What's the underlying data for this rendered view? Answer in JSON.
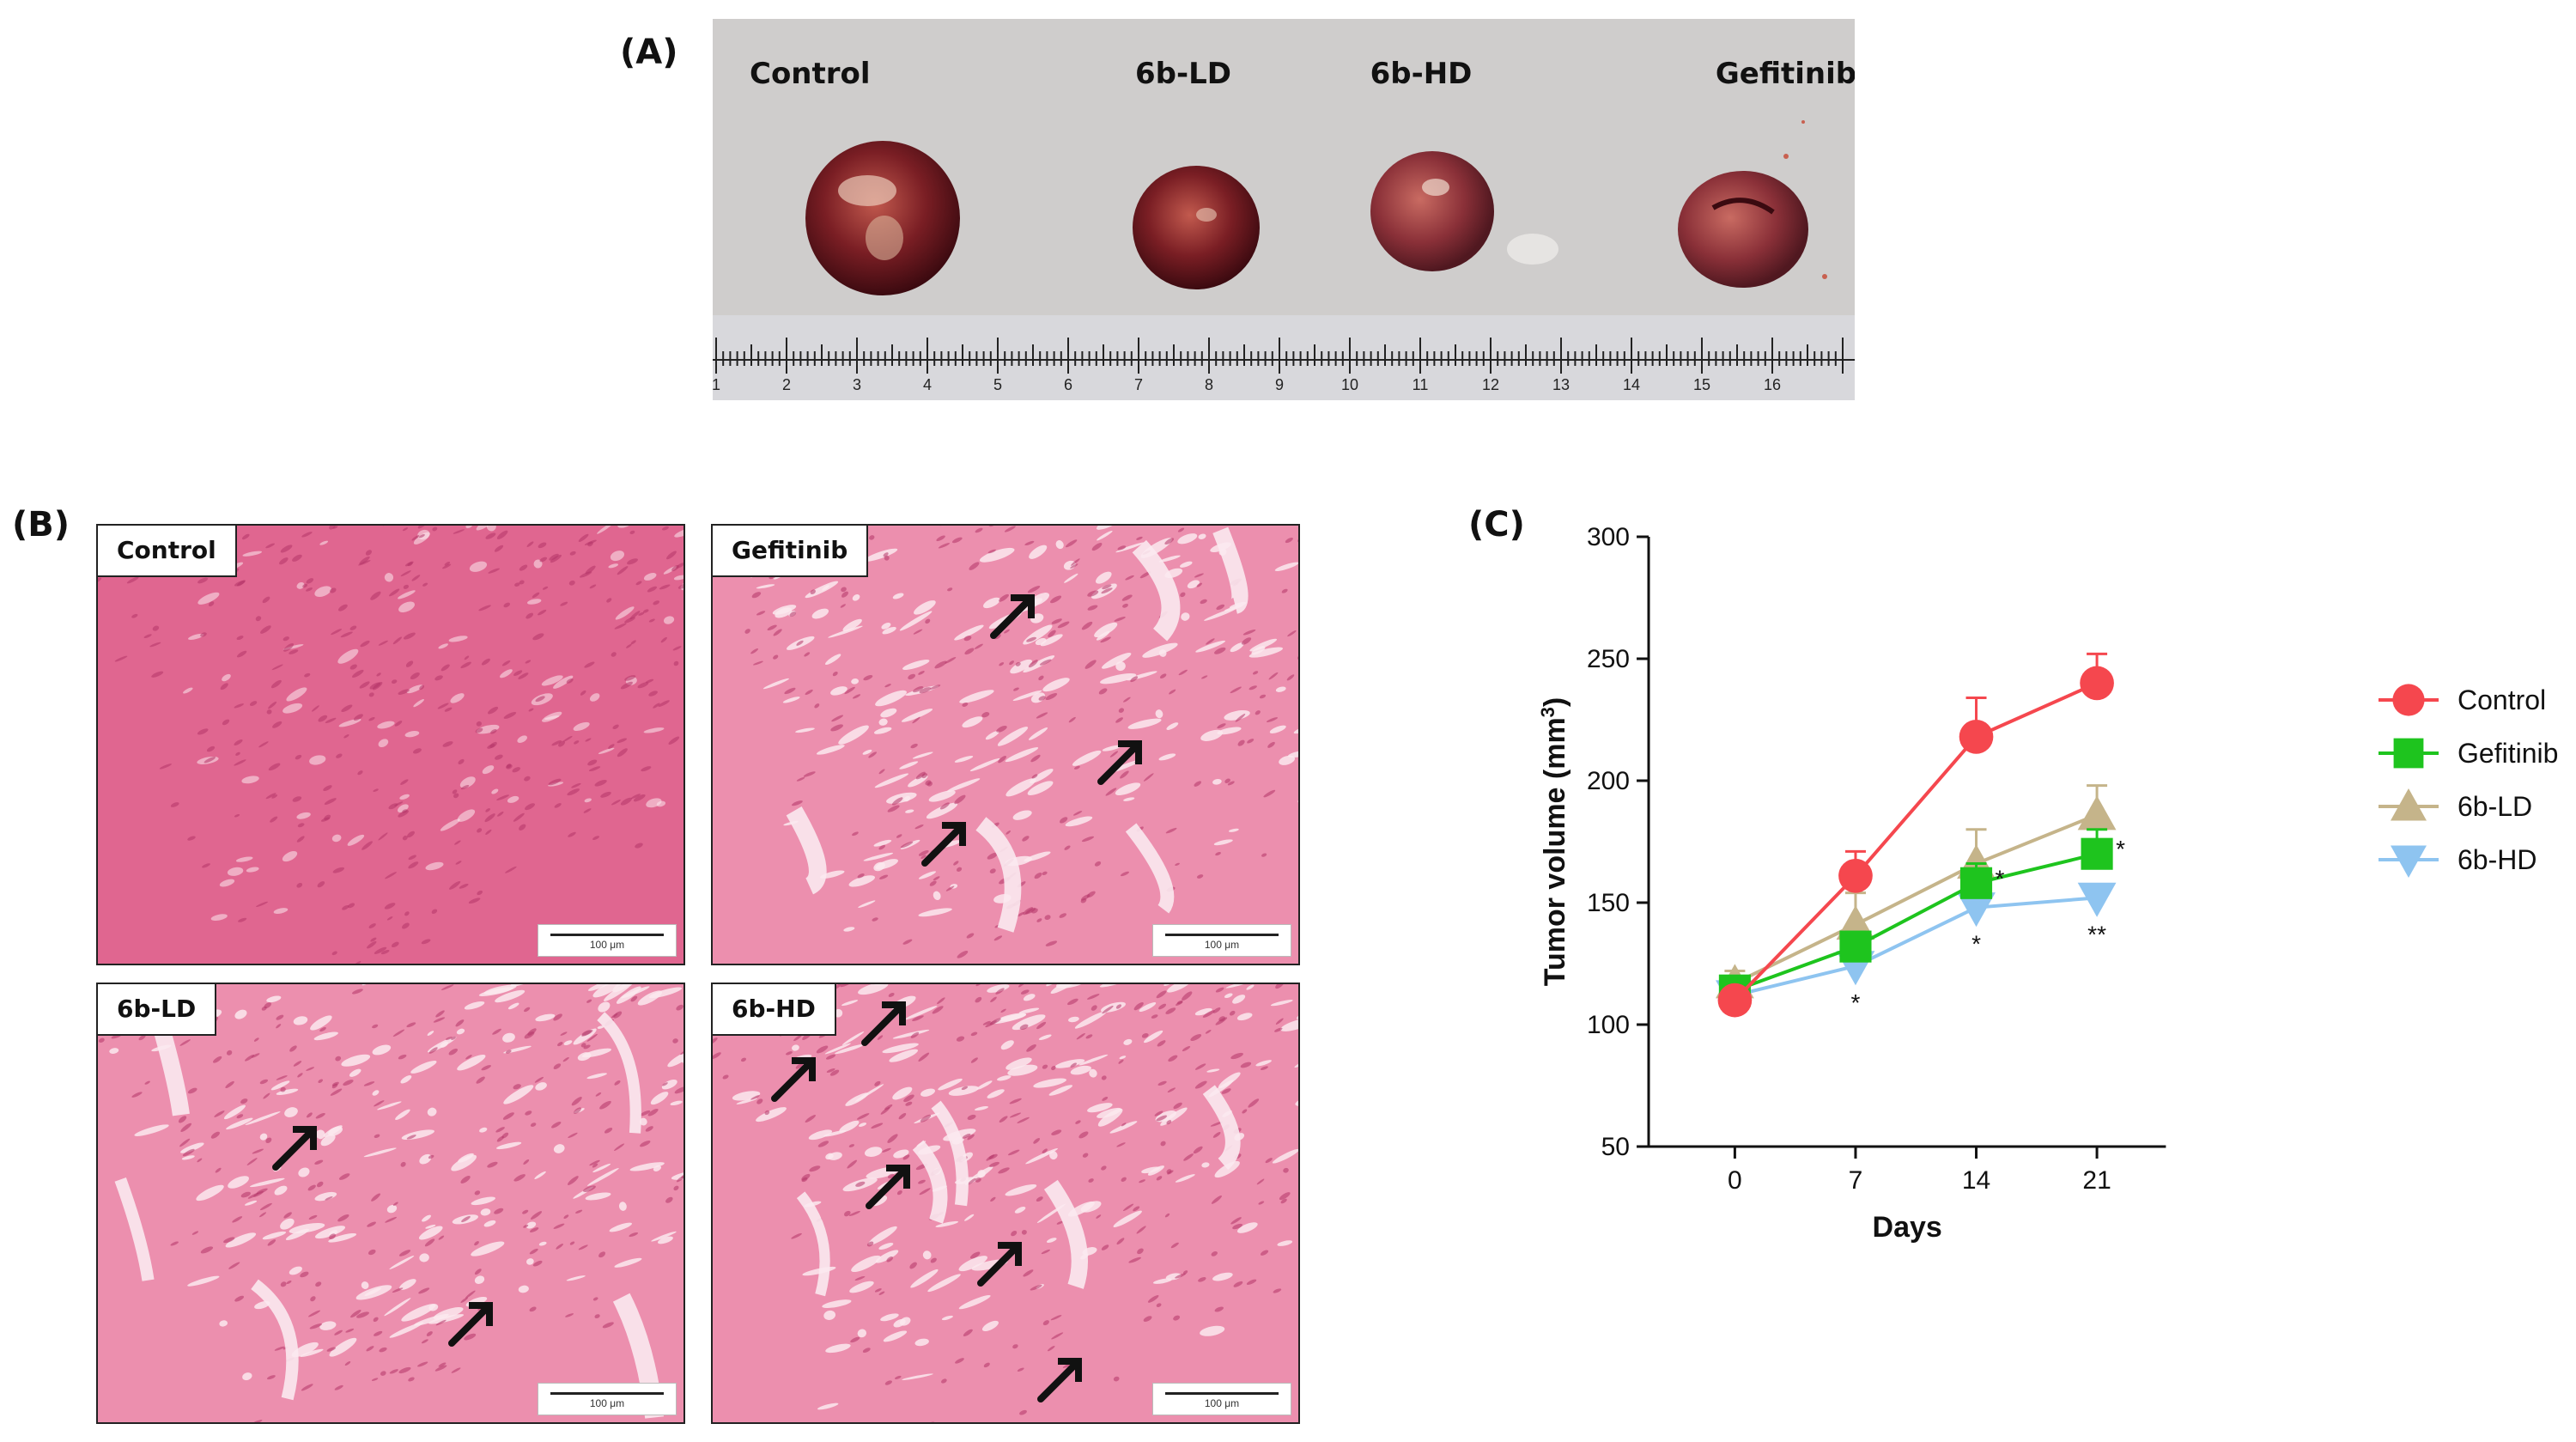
{
  "panel_a": {
    "label": "(A)",
    "groups": [
      "Control",
      "6b-LD",
      "6b-HD",
      "Gefitinib"
    ],
    "ruler_numbers": [
      "1",
      "2",
      "3",
      "4",
      "5",
      "6",
      "7",
      "8",
      "9",
      "10",
      "11",
      "12",
      "13",
      "14",
      "15",
      "16"
    ]
  },
  "panel_b": {
    "label": "(B)",
    "images": [
      {
        "label": "Control",
        "scale": "100 μm"
      },
      {
        "label": "Gefitinib",
        "scale": "100 μm"
      },
      {
        "label": "6b-LD",
        "scale": "100 μm"
      },
      {
        "label": "6b-HD",
        "scale": "100 μm"
      }
    ],
    "colors": {
      "tissue": "#ec8fae",
      "tissue_dense": "#e06690",
      "space": "#fbe9ef"
    }
  },
  "panel_c": {
    "label": "(C)"
  },
  "chart_data": {
    "type": "line",
    "xlabel": "Days",
    "ylabel": "Tumor volume (mm",
    "ylabel_sup": "3",
    "ylabel_end": ")",
    "x": [
      0,
      7,
      14,
      21
    ],
    "xlim": [
      -5,
      25
    ],
    "ylim": [
      50,
      300
    ],
    "xticks": [
      0,
      7,
      14,
      21
    ],
    "yticks": [
      50,
      100,
      150,
      200,
      250,
      300
    ],
    "grid": false,
    "legend": "right",
    "series": [
      {
        "name": "Control",
        "marker": "circle",
        "color": "#f5474e",
        "values": [
          110,
          161,
          218,
          240
        ],
        "errors": [
          3,
          10,
          16,
          12
        ],
        "sig": [
          "",
          "",
          "",
          ""
        ]
      },
      {
        "name": "Gefitinib",
        "marker": "square",
        "color": "#1ec41e",
        "values": [
          114,
          132,
          158,
          170
        ],
        "errors": [
          3,
          6,
          8,
          10
        ],
        "sig": [
          "",
          "",
          "*",
          "*"
        ]
      },
      {
        "name": "6b-LD",
        "marker": "triangle-up",
        "color": "#c5b48a",
        "values": [
          117,
          141,
          166,
          186
        ],
        "errors": [
          5,
          13,
          14,
          12
        ],
        "sig": [
          "",
          "",
          "",
          ""
        ]
      },
      {
        "name": "6b-HD",
        "marker": "triangle-down",
        "color": "#8ec4f0",
        "values": [
          112,
          124,
          148,
          152
        ],
        "errors": [
          3,
          4,
          4,
          3
        ],
        "sig": [
          "",
          "*",
          "*",
          "**"
        ]
      }
    ]
  }
}
